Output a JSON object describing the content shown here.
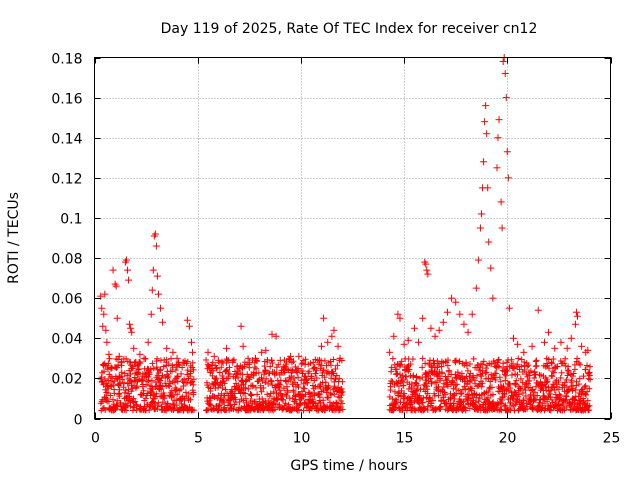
{
  "chart_data": {
    "type": "scatter",
    "title": "Day 119 of 2025, Rate Of TEC Index for receiver cn12",
    "xlabel": "GPS time / hours",
    "ylabel": "ROTI / TECUs",
    "xlim": [
      0,
      25
    ],
    "ylim": [
      0,
      0.18
    ],
    "x_ticks": [
      0,
      5,
      10,
      15,
      20,
      25
    ],
    "y_ticks": [
      0,
      0.02,
      0.04,
      0.06,
      0.08,
      0.1,
      0.12,
      0.14,
      0.16,
      0.18
    ],
    "x_tick_labels": [
      "0",
      "5",
      "10",
      "15",
      "20",
      "25"
    ],
    "y_tick_labels": [
      "0",
      "0.02",
      "0.04",
      "0.06",
      "0.08",
      "0.1",
      "0.12",
      "0.14",
      "0.16",
      "0.18"
    ],
    "grid": true,
    "marker": "+",
    "colors": {
      "points": "#ff0000",
      "grid": "#a0a0a0",
      "axes": "#000000"
    },
    "series": [
      {
        "points": [
          [
            0.3,
            0.061
          ],
          [
            0.35,
            0.055
          ],
          [
            0.4,
            0.046
          ],
          [
            0.45,
            0.052
          ],
          [
            0.5,
            0.062
          ],
          [
            0.55,
            0.044
          ],
          [
            0.6,
            0.038
          ],
          [
            0.7,
            0.032
          ],
          [
            0.8,
            0.025
          ],
          [
            0.9,
            0.074
          ],
          [
            1.0,
            0.067
          ],
          [
            1.05,
            0.066
          ],
          [
            1.1,
            0.05
          ],
          [
            1.2,
            0.031
          ],
          [
            1.3,
            0.028
          ],
          [
            1.5,
            0.078
          ],
          [
            1.55,
            0.079
          ],
          [
            1.6,
            0.074
          ],
          [
            1.65,
            0.069
          ],
          [
            1.7,
            0.047
          ],
          [
            1.75,
            0.045
          ],
          [
            1.8,
            0.043
          ],
          [
            1.9,
            0.035
          ],
          [
            2.0,
            0.028
          ],
          [
            2.2,
            0.032
          ],
          [
            2.4,
            0.03
          ],
          [
            2.6,
            0.038
          ],
          [
            2.75,
            0.052
          ],
          [
            2.8,
            0.064
          ],
          [
            2.85,
            0.074
          ],
          [
            2.9,
            0.091
          ],
          [
            2.95,
            0.092
          ],
          [
            3.0,
            0.086
          ],
          [
            3.05,
            0.071
          ],
          [
            3.1,
            0.062
          ],
          [
            3.2,
            0.055
          ],
          [
            3.3,
            0.048
          ],
          [
            3.5,
            0.035
          ],
          [
            3.8,
            0.033
          ],
          [
            4.0,
            0.03
          ],
          [
            4.3,
            0.028
          ],
          [
            4.5,
            0.049
          ],
          [
            4.6,
            0.046
          ],
          [
            4.7,
            0.038
          ],
          [
            4.75,
            0.033
          ],
          [
            5.5,
            0.033
          ],
          [
            5.8,
            0.031
          ],
          [
            6.0,
            0.029
          ],
          [
            6.4,
            0.035
          ],
          [
            6.7,
            0.028
          ],
          [
            7.1,
            0.046
          ],
          [
            7.2,
            0.036
          ],
          [
            7.5,
            0.028
          ],
          [
            7.8,
            0.03
          ],
          [
            8.1,
            0.033
          ],
          [
            8.3,
            0.034
          ],
          [
            8.6,
            0.042
          ],
          [
            8.8,
            0.041
          ],
          [
            9.0,
            0.029
          ],
          [
            9.2,
            0.024
          ],
          [
            9.5,
            0.031
          ],
          [
            9.9,
            0.031
          ],
          [
            10.2,
            0.027
          ],
          [
            10.6,
            0.028
          ],
          [
            10.9,
            0.029
          ],
          [
            11.0,
            0.036
          ],
          [
            11.1,
            0.05
          ],
          [
            11.3,
            0.038
          ],
          [
            11.5,
            0.041
          ],
          [
            11.6,
            0.044
          ],
          [
            11.8,
            0.036
          ],
          [
            11.9,
            0.03
          ],
          [
            14.3,
            0.033
          ],
          [
            14.5,
            0.041
          ],
          [
            14.7,
            0.052
          ],
          [
            14.8,
            0.05
          ],
          [
            15.0,
            0.037
          ],
          [
            15.2,
            0.039
          ],
          [
            15.5,
            0.045
          ],
          [
            15.7,
            0.038
          ],
          [
            15.9,
            0.05
          ],
          [
            16.0,
            0.078
          ],
          [
            16.05,
            0.077
          ],
          [
            16.1,
            0.074
          ],
          [
            16.15,
            0.072
          ],
          [
            16.3,
            0.045
          ],
          [
            16.5,
            0.041
          ],
          [
            16.7,
            0.044
          ],
          [
            16.9,
            0.048
          ],
          [
            17.1,
            0.053
          ],
          [
            17.3,
            0.06
          ],
          [
            17.5,
            0.058
          ],
          [
            17.7,
            0.052
          ],
          [
            17.9,
            0.047
          ],
          [
            18.1,
            0.043
          ],
          [
            18.3,
            0.052
          ],
          [
            18.5,
            0.065
          ],
          [
            18.6,
            0.079
          ],
          [
            18.7,
            0.095
          ],
          [
            18.75,
            0.102
          ],
          [
            18.8,
            0.115
          ],
          [
            18.85,
            0.128
          ],
          [
            18.9,
            0.148
          ],
          [
            18.95,
            0.156
          ],
          [
            19.0,
            0.142
          ],
          [
            19.05,
            0.115
          ],
          [
            19.1,
            0.088
          ],
          [
            19.2,
            0.075
          ],
          [
            19.3,
            0.06
          ],
          [
            19.5,
            0.125
          ],
          [
            19.55,
            0.14
          ],
          [
            19.6,
            0.149
          ],
          [
            19.7,
            0.108
          ],
          [
            19.75,
            0.095
          ],
          [
            19.8,
            0.178
          ],
          [
            19.85,
            0.18
          ],
          [
            19.9,
            0.172
          ],
          [
            19.95,
            0.16
          ],
          [
            20.0,
            0.133
          ],
          [
            20.05,
            0.12
          ],
          [
            20.1,
            0.055
          ],
          [
            20.3,
            0.04
          ],
          [
            20.5,
            0.037
          ],
          [
            20.8,
            0.033
          ],
          [
            21.2,
            0.036
          ],
          [
            21.5,
            0.054
          ],
          [
            21.8,
            0.038
          ],
          [
            22.0,
            0.043
          ],
          [
            22.3,
            0.035
          ],
          [
            22.6,
            0.038
          ],
          [
            22.9,
            0.035
          ],
          [
            23.1,
            0.04
          ],
          [
            23.3,
            0.047
          ],
          [
            23.35,
            0.053
          ],
          [
            23.4,
            0.051
          ],
          [
            23.6,
            0.036
          ],
          [
            23.8,
            0.033
          ],
          [
            23.9,
            0.034
          ]
        ]
      }
    ]
  }
}
